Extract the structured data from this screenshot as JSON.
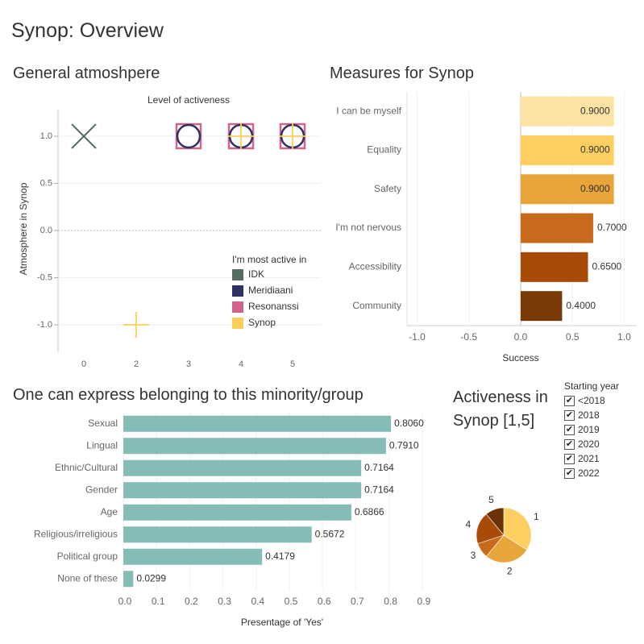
{
  "page_title": "Synop: Overview",
  "chart_data": [
    {
      "type": "scatter",
      "section_title": "General atmoshpere",
      "title": "Level of activeness",
      "ylabel": "Atmosphere in Synop",
      "xlabel": "",
      "x_ticks": [
        "0",
        "2",
        "3",
        "4",
        "5"
      ],
      "y_ticks": [
        "1.0",
        "0.5",
        "0.0",
        "-0.5",
        "-1.0"
      ],
      "ylim": [
        -1.2,
        1.2
      ],
      "legend_title": "I'm most active in",
      "legend_position": "right",
      "series": [
        {
          "name": "IDK",
          "color": "#566e62",
          "shape": "x-icon",
          "points": [
            {
              "x": "0",
              "y": 1.0
            }
          ]
        },
        {
          "name": "Meridiaani",
          "color": "#2e3163",
          "shape": "circle-icon",
          "points": [
            {
              "x": "3",
              "y": 1.0
            },
            {
              "x": "4",
              "y": 1.0
            },
            {
              "x": "5",
              "y": 1.0
            }
          ]
        },
        {
          "name": "Resonanssi",
          "color": "#d16587",
          "shape": "square-icon",
          "points": [
            {
              "x": "3",
              "y": 1.0
            },
            {
              "x": "4",
              "y": 1.0
            },
            {
              "x": "5",
              "y": 1.0
            }
          ]
        },
        {
          "name": "Synop",
          "color": "#fbcd59",
          "shape": "plus-icon",
          "points": [
            {
              "x": "2",
              "y": -1.0
            },
            {
              "x": "4",
              "y": 1.0
            },
            {
              "x": "5",
              "y": 1.0
            }
          ]
        }
      ]
    },
    {
      "type": "bar",
      "orientation": "horizontal",
      "section_title": "Measures for Synop",
      "xlabel": "Success",
      "x_ticks": [
        "-1.0",
        "-0.5",
        "0.0",
        "0.5",
        "1.0"
      ],
      "xlim": [
        -1.0,
        1.0
      ],
      "categories": [
        "I can be myself",
        "Equality",
        "Safety",
        "I'm not nervous",
        "Accessibility",
        "Community"
      ],
      "values": [
        0.9,
        0.9,
        0.9,
        0.7,
        0.65,
        0.4
      ],
      "labels": [
        "0.9000",
        "0.9000",
        "0.9000",
        "0.7000",
        "0.6500",
        "0.4000"
      ],
      "colors": [
        "#fde3a3",
        "#fdcf61",
        "#e8a53a",
        "#c76a1c",
        "#a84a08",
        "#7a3a07"
      ]
    },
    {
      "type": "bar",
      "orientation": "horizontal",
      "section_title": "One can express belonging to this minority/group",
      "xlabel": "Presentage of 'Yes'",
      "x_ticks": [
        "0.0",
        "0.1",
        "0.2",
        "0.3",
        "0.4",
        "0.5",
        "0.6",
        "0.7",
        "0.8",
        "0.9"
      ],
      "xlim": [
        0,
        0.95
      ],
      "categories": [
        "Sexual",
        "Lingual",
        "Ethnic/Cultural",
        "Gender",
        "Age",
        "Religious/irreligious",
        "Political group",
        "None of these"
      ],
      "values": [
        0.806,
        0.791,
        0.7164,
        0.7164,
        0.6866,
        0.5672,
        0.4179,
        0.0299
      ],
      "labels": [
        "0.8060",
        "0.7910",
        "0.7164",
        "0.7164",
        "0.6866",
        "0.5672",
        "0.4179",
        "0.0299"
      ],
      "color": "#85bcb6"
    },
    {
      "type": "pie",
      "section_title_lines": [
        "Activeness in",
        "Synop [1,5]"
      ],
      "categories": [
        "1",
        "2",
        "3",
        "4",
        "5"
      ],
      "values": [
        34,
        27,
        9,
        19,
        11
      ],
      "colors": [
        "#fdcf61",
        "#e8a53a",
        "#c76a1c",
        "#a84a08",
        "#6a3306"
      ]
    }
  ],
  "filter": {
    "title": "Starting year",
    "items": [
      {
        "label": "<2018",
        "checked": true
      },
      {
        "label": "2018",
        "checked": true
      },
      {
        "label": "2019",
        "checked": true
      },
      {
        "label": "2020",
        "checked": true
      },
      {
        "label": "2021",
        "checked": true
      },
      {
        "label": "2022",
        "checked": true
      }
    ],
    "check_glyph": "✔"
  }
}
